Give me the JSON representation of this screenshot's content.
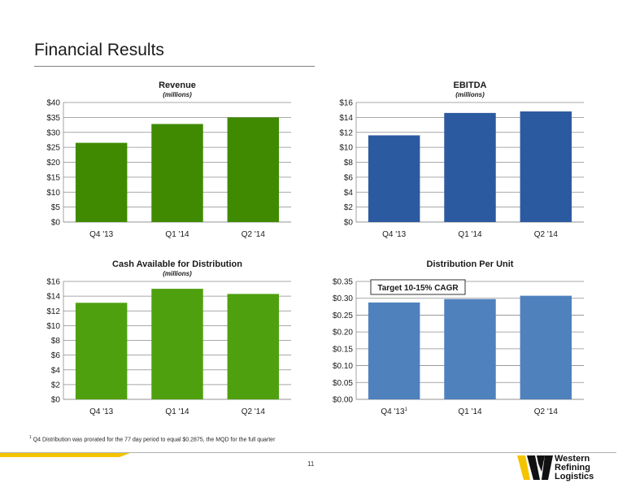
{
  "slide": {
    "title": "Financial Results",
    "page_number": "11",
    "footnote_marker": "1",
    "footnote_text": "Q4 Distribution was prorated for the 77 day period to equal $0.2875, the MQD for the full quarter"
  },
  "logo": {
    "line1": "Western",
    "line2": "Refining",
    "line3": "Logistics"
  },
  "colors": {
    "revenue": "#3f8a00",
    "ebitda": "#2c5aa0",
    "cash": "#4fa00f",
    "dpu": "#4f81bd",
    "accent_yellow": "#f5c400"
  },
  "chart_data": [
    {
      "id": "revenue",
      "type": "bar",
      "title": "Revenue",
      "subtitle": "(millions)",
      "categories": [
        "Q4 '13",
        "Q1 '14",
        "Q2 '14"
      ],
      "values": [
        26.5,
        32.8,
        35.0
      ],
      "ylim": [
        0,
        40
      ],
      "yticks": [
        "$0",
        "$5",
        "$10",
        "$15",
        "$20",
        "$25",
        "$30",
        "$35",
        "$40"
      ],
      "grid": true
    },
    {
      "id": "ebitda",
      "type": "bar",
      "title": "EBITDA",
      "subtitle": "(millions)",
      "categories": [
        "Q4 '13",
        "Q1 '14",
        "Q2 '14"
      ],
      "values": [
        11.6,
        14.6,
        14.8
      ],
      "ylim": [
        0,
        16
      ],
      "yticks": [
        "$0",
        "$2",
        "$4",
        "$6",
        "$8",
        "$10",
        "$12",
        "$14",
        "$16"
      ],
      "grid": true
    },
    {
      "id": "cash",
      "type": "bar",
      "title": "Cash Available for Distribution",
      "subtitle": "(millions)",
      "categories": [
        "Q4 '13",
        "Q1 '14",
        "Q2 '14"
      ],
      "values": [
        13.1,
        15.0,
        14.3
      ],
      "ylim": [
        0,
        16
      ],
      "yticks": [
        "$0",
        "$2",
        "$4",
        "$6",
        "$8",
        "$10",
        "$12",
        "$14",
        "$16"
      ],
      "grid": true
    },
    {
      "id": "dpu",
      "type": "bar",
      "title": "Distribution Per Unit",
      "subtitle": "",
      "categories": [
        "Q4 '13",
        "Q1 '14",
        "Q2 '14"
      ],
      "category_superscripts": [
        "1",
        "",
        ""
      ],
      "values": [
        0.2875,
        0.2975,
        0.3075
      ],
      "ylim": [
        0,
        0.35
      ],
      "yticks": [
        "$0.00",
        "$0.05",
        "$0.10",
        "$0.15",
        "$0.20",
        "$0.25",
        "$0.30",
        "$0.35"
      ],
      "annotation": "Target 10-15% CAGR",
      "grid": true
    }
  ]
}
